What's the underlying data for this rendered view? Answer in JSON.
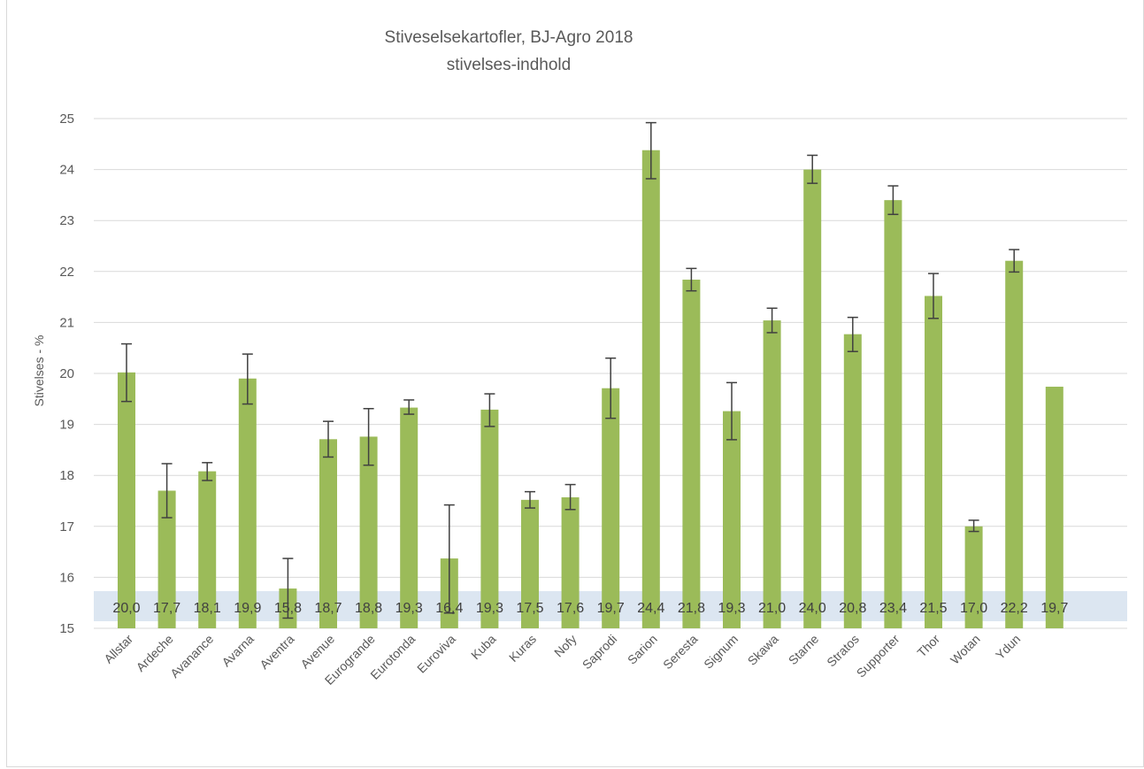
{
  "chart_data": {
    "type": "bar",
    "title": "Stiveselsekartofler, BJ-Agro 2018",
    "subtitle": "stivelses-indhold",
    "ylabel": "Stivelses - %",
    "xlabel": "",
    "ylim": [
      15,
      25
    ],
    "yticks": [
      "15",
      "16",
      "17",
      "18",
      "19",
      "20",
      "21",
      "22",
      "23",
      "24",
      "25"
    ],
    "grid": true,
    "legend": "none",
    "categories": [
      "Allstar",
      "Ardeche",
      "Avanance",
      "Avarna",
      "Aventra",
      "Avenue",
      "Eurogrande",
      "Eurotonda",
      "Euroviva",
      "Kuba",
      "Kuras",
      "Nofy",
      "Saprodi",
      "Sarion",
      "Seresta",
      "Signum",
      "Skawa",
      "Starne",
      "Stratos",
      "Supporter",
      "Thor",
      "Wotan",
      "Ydun",
      ""
    ],
    "values": [
      20.02,
      17.7,
      18.08,
      19.9,
      15.78,
      18.71,
      18.76,
      19.33,
      16.37,
      19.29,
      17.52,
      17.57,
      19.71,
      24.38,
      21.84,
      19.26,
      21.04,
      24.0,
      20.77,
      23.4,
      21.52,
      17.0,
      22.21,
      19.74
    ],
    "data_labels": [
      "20,0",
      "17,7",
      "18,1",
      "19,9",
      "15,8",
      "18,7",
      "18,8",
      "19,3",
      "16,4",
      "19,3",
      "17,5",
      "17,6",
      "19,7",
      "24,4",
      "21,8",
      "19,3",
      "21,0",
      "24,0",
      "20,8",
      "23,4",
      "21,5",
      "17,0",
      "22,2",
      "19,7"
    ],
    "error_low": [
      19.45,
      17.17,
      17.9,
      19.4,
      15.2,
      18.36,
      18.2,
      19.2,
      15.3,
      18.96,
      17.36,
      17.33,
      19.12,
      23.82,
      21.62,
      18.7,
      20.8,
      23.73,
      20.43,
      23.12,
      21.08,
      16.9,
      21.99,
      null
    ],
    "error_high": [
      20.58,
      18.23,
      18.25,
      20.38,
      16.37,
      19.06,
      19.31,
      19.48,
      17.42,
      19.6,
      17.68,
      17.82,
      20.3,
      24.92,
      22.06,
      19.82,
      21.28,
      24.28,
      21.1,
      23.68,
      21.96,
      17.12,
      22.43,
      null
    ],
    "colors": {
      "bar": "#9bbb59",
      "error_bar": "#404040",
      "label_band": "#dce6f1",
      "grid": "#d9d9d9"
    }
  }
}
